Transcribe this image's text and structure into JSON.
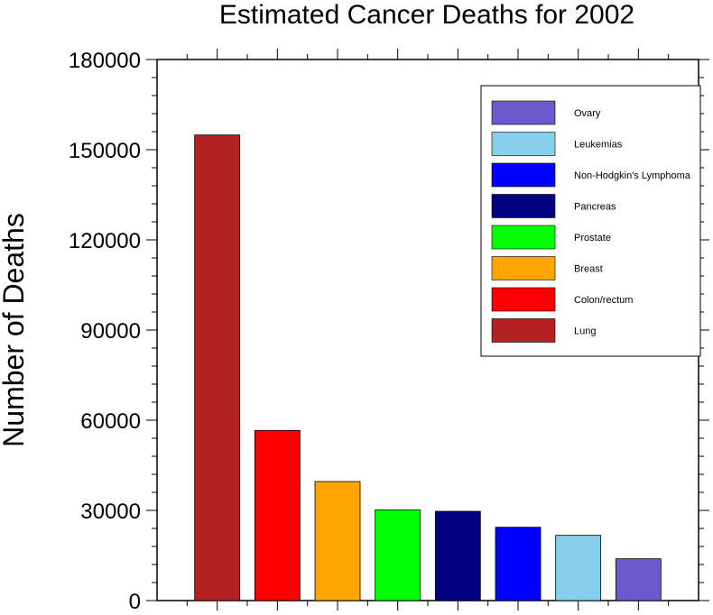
{
  "chart_data": {
    "type": "bar",
    "title": "Estimated Cancer Deaths for 2002",
    "xlabel": "",
    "ylabel": "Number of Deaths",
    "ylim": [
      0,
      180000
    ],
    "yticks": [
      "0",
      "30000",
      "60000",
      "90000",
      "120000",
      "150000",
      "180000"
    ],
    "categories": [
      "Lung",
      "Colon/rectum",
      "Breast",
      "Prostate",
      "Pancreas",
      "Non-Hodgkin's Lymphoma",
      "Leukemias",
      "Ovary"
    ],
    "values": [
      154900,
      56600,
      39600,
      30200,
      29700,
      24400,
      21700,
      13900
    ],
    "colors": [
      "#b22222",
      "#ff0000",
      "#ffa500",
      "#00ff00",
      "#000080",
      "#0000ff",
      "#87ceeb",
      "#6a5acd"
    ],
    "legend_placement": "top-right",
    "grid": false
  }
}
